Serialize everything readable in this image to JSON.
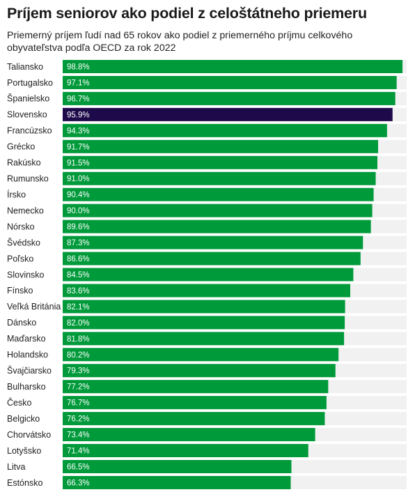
{
  "title": "Príjem seniorov ako podiel z celoštátneho priemeru",
  "subtitle": "Priemerný príjem ľudí nad 65 rokov ako podiel z priemerného príjmu celkového obyvateľstva podľa OECD za rok 2022",
  "colors": {
    "bar": "#009a3a",
    "highlight": "#1e0a4a",
    "track": "#f1f1f1"
  },
  "chart_data": {
    "type": "bar",
    "orientation": "horizontal",
    "title": "Príjem seniorov ako podiel z celoštátneho priemeru",
    "subtitle": "Priemerný príjem ľudí nad 65 rokov ako podiel z priemerného príjmu celkového obyvateľstva podľa OECD za rok 2022",
    "xlabel": "",
    "ylabel": "",
    "xlim": [
      0,
      100
    ],
    "grid": false,
    "highlight": "Slovensko",
    "categories": [
      "Taliansko",
      "Portugalsko",
      "Španielsko",
      "Slovensko",
      "Francúzsko",
      "Grécko",
      "Rakúsko",
      "Rumunsko",
      "Írsko",
      "Nemecko",
      "Nórsko",
      "Švédsko",
      "Poľsko",
      "Slovinsko",
      "Fínsko",
      "Veľká Británia",
      "Dánsko",
      "Maďarsko",
      "Holandsko",
      "Švajčiarsko",
      "Bulharsko",
      "Česko",
      "Belgicko",
      "Chorvátsko",
      "Lotyšsko",
      "Litva",
      "Estónsko"
    ],
    "values": [
      98.8,
      97.1,
      96.7,
      95.9,
      94.3,
      91.7,
      91.5,
      91.0,
      90.4,
      90.0,
      89.6,
      87.3,
      86.6,
      84.5,
      83.6,
      82.1,
      82.0,
      81.8,
      80.2,
      79.3,
      77.2,
      76.7,
      76.2,
      73.4,
      71.4,
      66.5,
      66.3
    ],
    "value_labels": [
      "98.8%",
      "97.1%",
      "96.7%",
      "95.9%",
      "94.3%",
      "91.7%",
      "91.5%",
      "91.0%",
      "90.4%",
      "90.0%",
      "89.6%",
      "87.3%",
      "86.6%",
      "84.5%",
      "83.6%",
      "82.1%",
      "82.0%",
      "81.8%",
      "80.2%",
      "79.3%",
      "77.2%",
      "76.7%",
      "76.2%",
      "73.4%",
      "71.4%",
      "66.5%",
      "66.3%"
    ]
  }
}
